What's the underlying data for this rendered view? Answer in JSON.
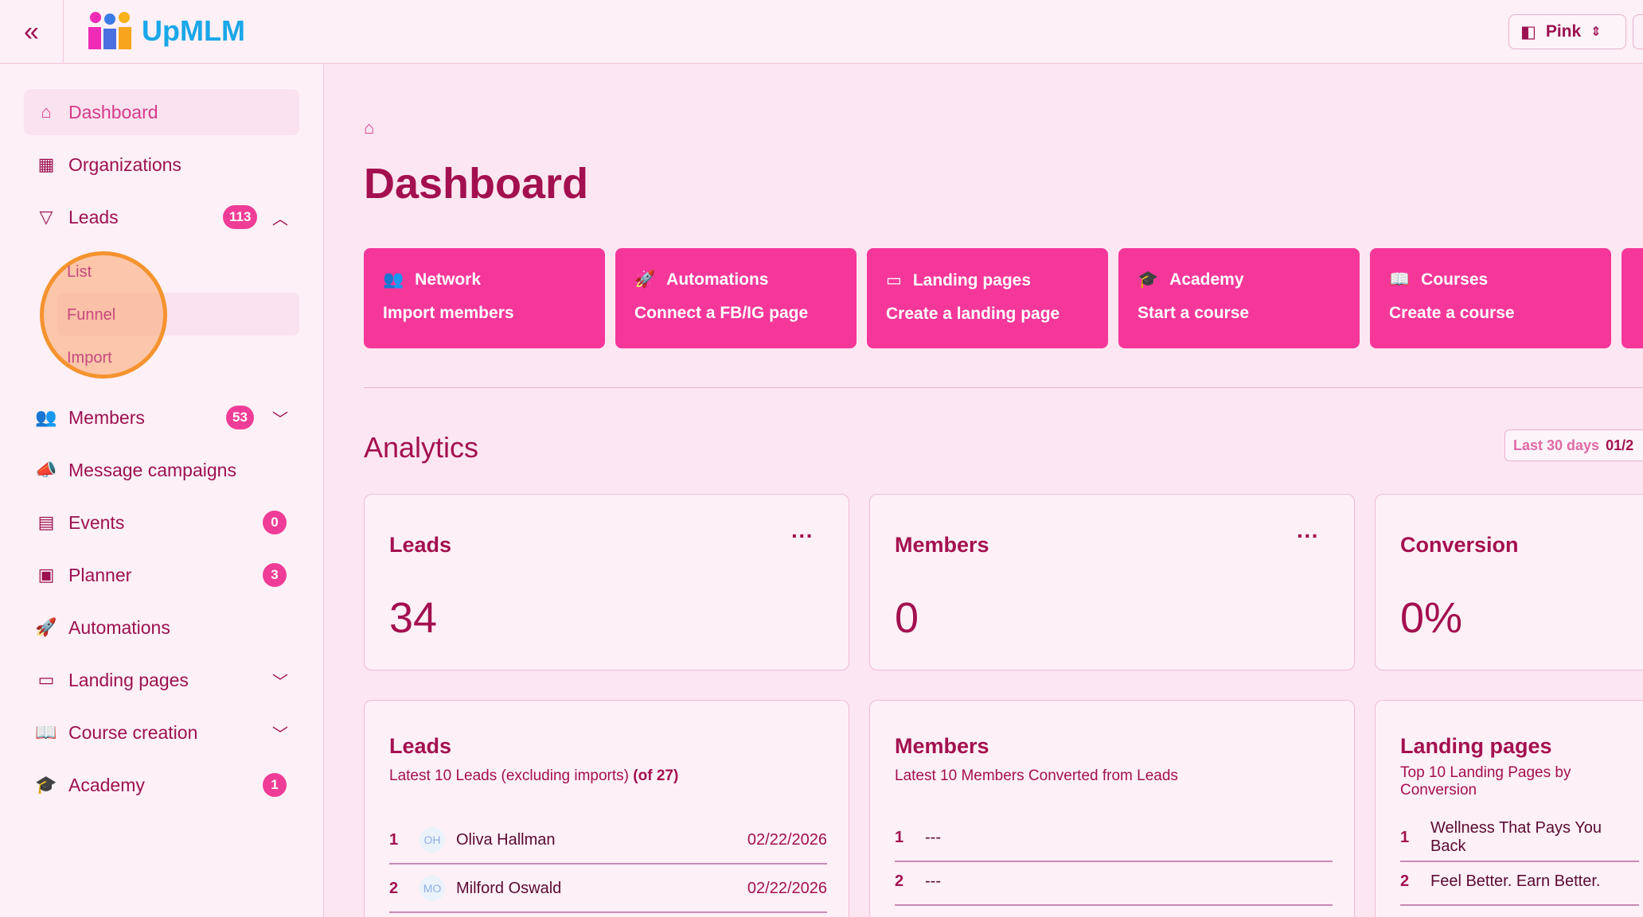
{
  "header": {
    "brand": "UpMLM",
    "theme": "Pink"
  },
  "sidebar": {
    "items": [
      {
        "label": "Dashboard",
        "icon": "home-icon"
      },
      {
        "label": "Organizations",
        "icon": "building-icon"
      },
      {
        "label": "Leads",
        "icon": "funnel-icon",
        "badge": "113"
      },
      {
        "label": "Members",
        "icon": "users-icon",
        "badge": "53"
      },
      {
        "label": "Message campaigns",
        "icon": "megaphone-icon"
      },
      {
        "label": "Events",
        "icon": "calendar-icon",
        "badge": "0"
      },
      {
        "label": "Planner",
        "icon": "clipboard-icon",
        "badge": "3"
      },
      {
        "label": "Automations",
        "icon": "rocket-icon"
      },
      {
        "label": "Landing pages",
        "icon": "monitor-icon"
      },
      {
        "label": "Course creation",
        "icon": "book-icon"
      },
      {
        "label": "Academy",
        "icon": "graduation-cap-icon",
        "badge": "1"
      }
    ],
    "leads_sub": [
      "List",
      "Funnel",
      "Import"
    ]
  },
  "page": {
    "title": "Dashboard"
  },
  "actions": [
    {
      "title": "Network",
      "sub": "Import members"
    },
    {
      "title": "Automations",
      "sub": "Connect a FB/IG page"
    },
    {
      "title": "Landing pages",
      "sub": "Create a landing page"
    },
    {
      "title": "Academy",
      "sub": "Start a course"
    },
    {
      "title": "Courses",
      "sub": "Create a course"
    }
  ],
  "analytics": {
    "title": "Analytics",
    "range_label": "Last 30 days",
    "range_value": "01/2",
    "stats": [
      {
        "label": "Leads",
        "value": "34"
      },
      {
        "label": "Members",
        "value": "0"
      },
      {
        "label": "Conversion",
        "value": "0%"
      }
    ],
    "leads": {
      "title": "Leads",
      "desc": "Latest 10 Leads (excluding imports)",
      "count": "(of 27)",
      "rows": [
        {
          "n": "1",
          "initials": "OH",
          "name": "Oliva Hallman",
          "date": "02/22/2026"
        },
        {
          "n": "2",
          "initials": "MO",
          "name": "Milford Oswald",
          "date": "02/22/2026"
        }
      ]
    },
    "members": {
      "title": "Members",
      "desc": "Latest 10 Members Converted from Leads",
      "rows": [
        {
          "n": "1",
          "name": "---"
        },
        {
          "n": "2",
          "name": "---"
        }
      ]
    },
    "landing": {
      "title": "Landing pages",
      "desc": "Top 10 Landing Pages by Conversion",
      "rows": [
        {
          "n": "1",
          "name": "Wellness That Pays You Back"
        },
        {
          "n": "2",
          "name": "Feel Better. Earn Better."
        }
      ]
    }
  },
  "colors": {
    "accent": "#f5379a",
    "text": "#a3104f",
    "bg": "#fce6f2"
  }
}
